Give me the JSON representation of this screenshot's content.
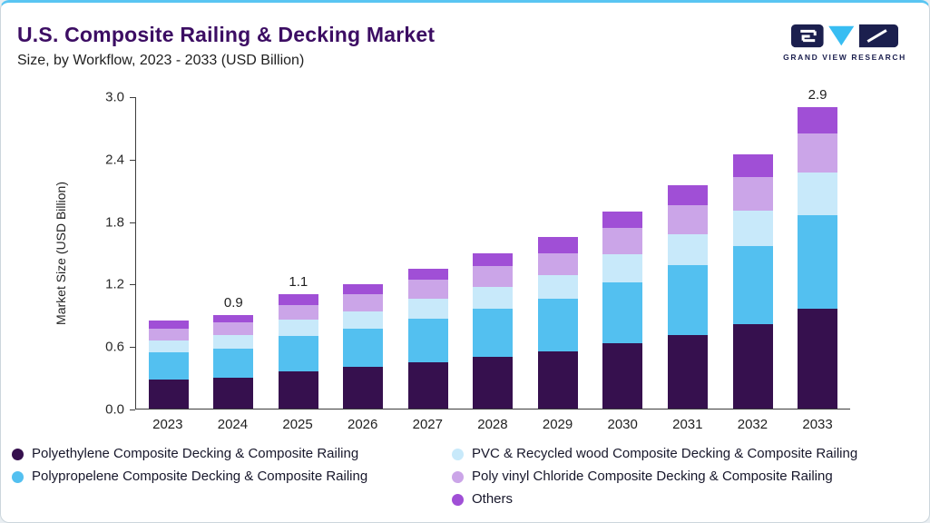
{
  "page": {
    "title": "U.S. Composite Railing & Decking Market",
    "subtitle": "Size, by Workflow, 2023 - 2033 (USD Billion)",
    "logo_text": "GRAND VIEW RESEARCH"
  },
  "chart_data": {
    "type": "bar",
    "stacked": true,
    "title": "U.S. Composite Railing & Decking Market, Size, by Workflow, 2023 - 2033 (USD Billion)",
    "xlabel": "",
    "ylabel": "Market Size (USD Billion)",
    "ylim": [
      0.0,
      3.0
    ],
    "yticks": [
      0.0,
      0.6,
      1.2,
      1.8,
      2.4,
      3.0
    ],
    "grid": false,
    "legend_position": "bottom",
    "categories": [
      "2023",
      "2024",
      "2025",
      "2026",
      "2027",
      "2028",
      "2029",
      "2030",
      "2031",
      "2032",
      "2033"
    ],
    "series": [
      {
        "name": "Polyethylene Composite Decking & Composite Railing",
        "color": "#36104e",
        "values": [
          0.28,
          0.3,
          0.36,
          0.4,
          0.45,
          0.5,
          0.55,
          0.63,
          0.71,
          0.81,
          0.96
        ]
      },
      {
        "name": "Polypropelene Composite Decking & Composite Railing",
        "color": "#53c0f0",
        "values": [
          0.26,
          0.28,
          0.34,
          0.37,
          0.42,
          0.46,
          0.51,
          0.59,
          0.67,
          0.76,
          0.9
        ]
      },
      {
        "name": "PVC & Recycled wood Composite Decking & Composite Railing",
        "color": "#c8e9fa",
        "values": [
          0.12,
          0.13,
          0.16,
          0.17,
          0.19,
          0.21,
          0.23,
          0.27,
          0.3,
          0.34,
          0.41
        ]
      },
      {
        "name": "Poly vinyl Chloride Composite Decking & Composite Railing",
        "color": "#cba5e8",
        "values": [
          0.11,
          0.12,
          0.14,
          0.16,
          0.18,
          0.2,
          0.21,
          0.25,
          0.28,
          0.32,
          0.38
        ]
      },
      {
        "name": "Others",
        "color": "#a04fd6",
        "values": [
          0.08,
          0.07,
          0.1,
          0.1,
          0.11,
          0.13,
          0.15,
          0.16,
          0.19,
          0.22,
          0.25
        ]
      }
    ],
    "bar_total_labels": {
      "2024": "0.9",
      "2025": "1.1",
      "2033": "2.9"
    }
  }
}
